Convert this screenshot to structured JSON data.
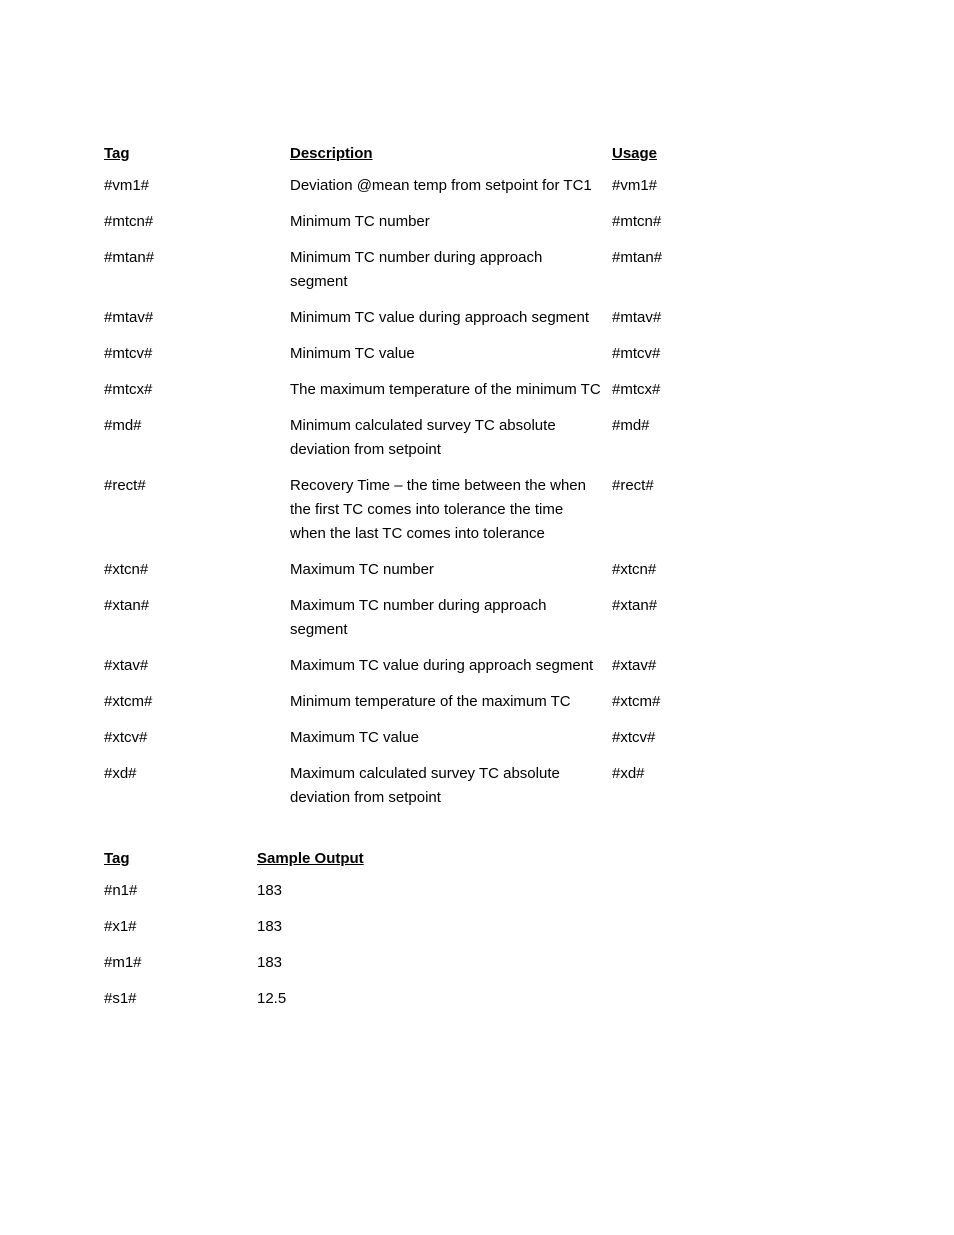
{
  "table1": {
    "headers": {
      "tag": "Tag",
      "description": "Description",
      "usage": "Usage"
    },
    "rows": [
      {
        "tag": "#vm1#",
        "description": "Deviation @mean temp from setpoint for TC1",
        "usage": "#vm1#"
      },
      {
        "tag": "#mtcn#",
        "description": "Minimum TC number",
        "usage": "#mtcn#"
      },
      {
        "tag": "#mtan#",
        "description": "Minimum TC number during approach segment",
        "usage": "#mtan#"
      },
      {
        "tag": "#mtav#",
        "description": "Minimum TC value during approach segment",
        "usage": "#mtav#"
      },
      {
        "tag": "#mtcv#",
        "description": "Minimum TC value",
        "usage": "#mtcv#"
      },
      {
        "tag": "#mtcx#",
        "description": "The maximum temperature of the minimum TC",
        "usage": "#mtcx#"
      },
      {
        "tag": "#md#",
        "description": "Minimum calculated survey TC absolute deviation from setpoint",
        "usage": "#md#"
      },
      {
        "tag": "#rect#",
        "description": "Recovery Time – the time between the when the first TC comes into tolerance the time when the last TC comes into tolerance",
        "usage": "#rect#"
      },
      {
        "tag": "#xtcn#",
        "description": "Maximum TC number",
        "usage": "#xtcn#"
      },
      {
        "tag": "#xtan#",
        "description": "Maximum TC number during approach segment",
        "usage": "#xtan#"
      },
      {
        "tag": "#xtav#",
        "description": "Maximum TC value during approach segment",
        "usage": "#xtav#"
      },
      {
        "tag": "#xtcm#",
        "description": "Minimum temperature of the maximum TC",
        "usage": "#xtcm#"
      },
      {
        "tag": "#xtcv#",
        "description": "Maximum TC value",
        "usage": "#xtcv#"
      },
      {
        "tag": "#xd#",
        "description": "Maximum calculated survey TC absolute deviation from setpoint",
        "usage": "#xd#"
      }
    ]
  },
  "table2": {
    "headers": {
      "tag": "Tag",
      "output": "Sample Output"
    },
    "rows": [
      {
        "tag": "#n1#",
        "output": "183"
      },
      {
        "tag": "#x1#",
        "output": "183"
      },
      {
        "tag": "#m1#",
        "output": "183"
      },
      {
        "tag": "#s1#",
        "output": "12.5"
      }
    ]
  }
}
